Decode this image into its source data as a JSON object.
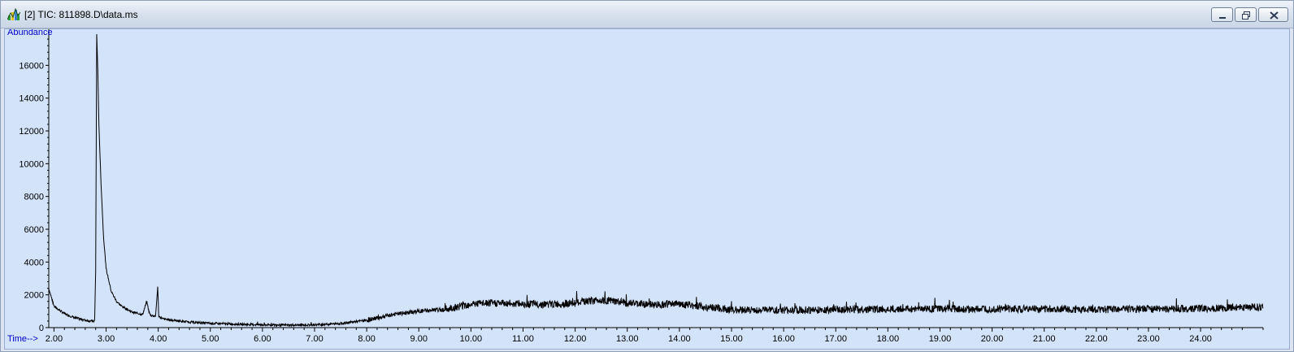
{
  "window": {
    "title": "[2] TIC: 811898.D\\data.ms",
    "icon": "chromatogram-app-icon",
    "controls": [
      "minimize-icon",
      "restore-icon",
      "close-icon"
    ]
  },
  "chart_data": {
    "type": "line",
    "title": "",
    "xlabel": "Time-->",
    "ylabel": "Abundance",
    "xlim": [
      1.9,
      25.2
    ],
    "ylim": [
      0,
      18200
    ],
    "x_ticks": [
      "2.00",
      "3.00",
      "4.00",
      "5.00",
      "6.00",
      "7.00",
      "8.00",
      "9.00",
      "10.00",
      "11.00",
      "12.00",
      "13.00",
      "14.00",
      "15.00",
      "16.00",
      "17.00",
      "18.00",
      "19.00",
      "20.00",
      "21.00",
      "22.00",
      "23.00",
      "24.00"
    ],
    "y_ticks": [
      "0",
      "2000",
      "4000",
      "6000",
      "8000",
      "10000",
      "12000",
      "14000",
      "16000"
    ],
    "line_color": "#000000",
    "background_color": "#d3e3fa",
    "series": [
      {
        "x": [
          1.9,
          2.0,
          2.2,
          2.4,
          2.6,
          2.78,
          2.8,
          2.82,
          2.84,
          2.86,
          2.9,
          2.95,
          3.0,
          3.1,
          3.2,
          3.3,
          3.5,
          3.7,
          3.78,
          3.82,
          3.85,
          3.95,
          3.99,
          4.01,
          4.03,
          4.1,
          4.5,
          5.0,
          5.5,
          6.0,
          6.5,
          7.0,
          7.5,
          8.0,
          8.5,
          9.0,
          9.5,
          10.0,
          10.5,
          11.0,
          11.5,
          12.0,
          12.5,
          13.0,
          13.5,
          14.0,
          14.5,
          15.0,
          16.0,
          17.0,
          18.0,
          19.0,
          20.0,
          21.0,
          22.0,
          23.0,
          24.0,
          25.0,
          25.2
        ],
        "y": [
          2400,
          1300,
          850,
          600,
          450,
          380,
          3500,
          17900,
          15800,
          12600,
          9000,
          5600,
          3600,
          2200,
          1600,
          1300,
          950,
          800,
          1600,
          1000,
          750,
          700,
          2500,
          700,
          650,
          520,
          360,
          260,
          210,
          170,
          150,
          170,
          250,
          450,
          800,
          1000,
          1100,
          1450,
          1500,
          1450,
          1420,
          1500,
          1700,
          1500,
          1400,
          1450,
          1250,
          1100,
          1050,
          1100,
          1120,
          1150,
          1120,
          1150,
          1100,
          1150,
          1150,
          1250,
          1250
        ]
      }
    ]
  }
}
